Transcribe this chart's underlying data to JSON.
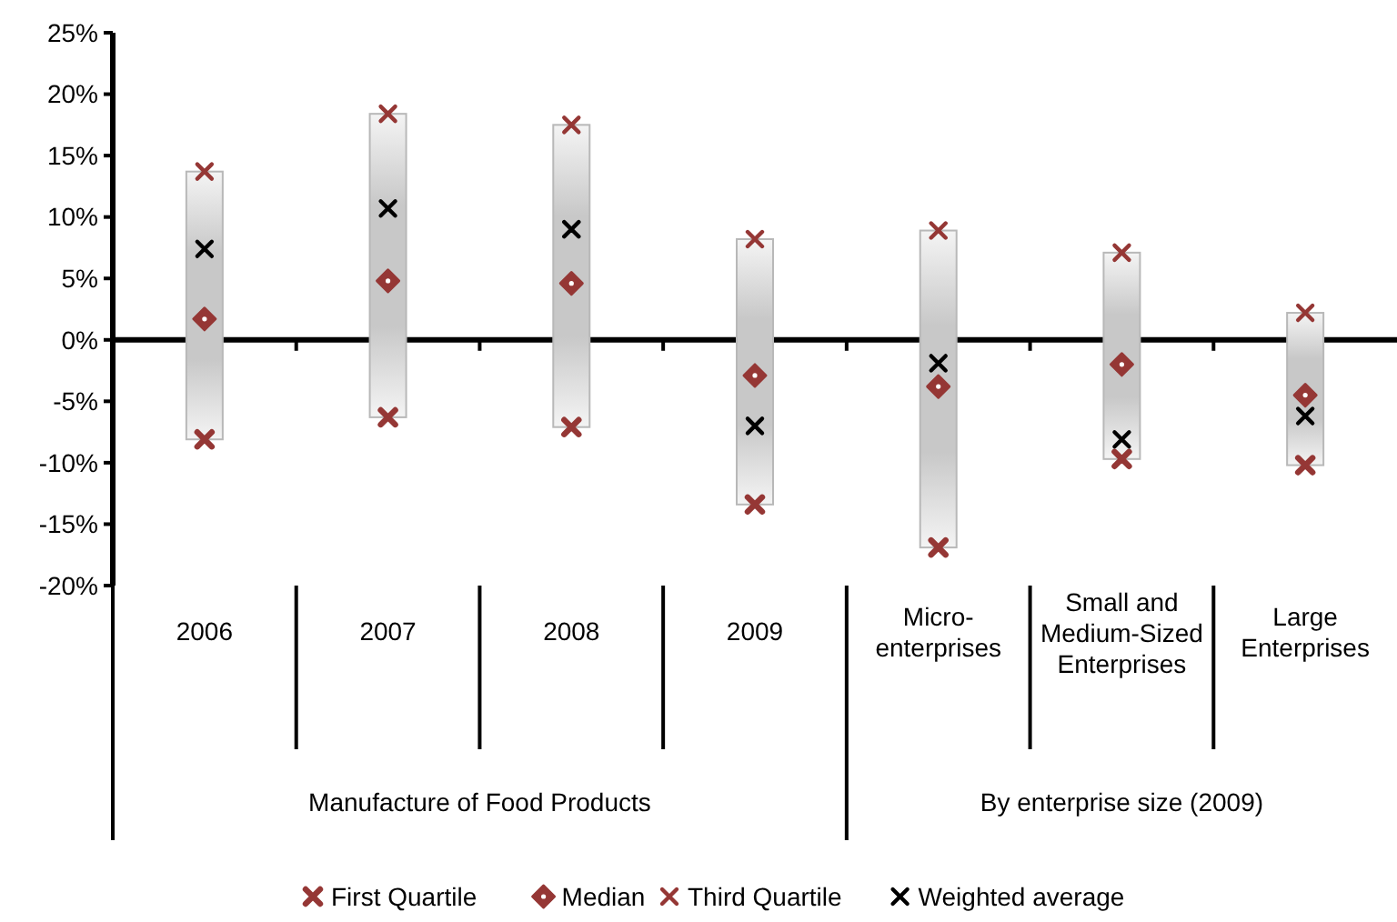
{
  "chart_data": {
    "type": "bar",
    "categories": [
      "2006",
      "2007",
      "2008",
      "2009",
      "Micro-enterprises",
      "Small and Medium-Sized Enterprises",
      "Large Enterprises"
    ],
    "ylim": [
      -20,
      25
    ],
    "yticks": [
      {
        "value": -20,
        "label": "-20%"
      },
      {
        "value": -15,
        "label": "-15%"
      },
      {
        "value": -10,
        "label": "-10%"
      },
      {
        "value": -5,
        "label": "-5%"
      },
      {
        "value": 0,
        "label": "0%"
      },
      {
        "value": 5,
        "label": "5%"
      },
      {
        "value": 10,
        "label": "10%"
      },
      {
        "value": 15,
        "label": "15%"
      },
      {
        "value": 20,
        "label": "20%"
      },
      {
        "value": 25,
        "label": "25%"
      }
    ],
    "legend": "bottom",
    "annotations": [
      "Manufacture of Food Products",
      "By enterprise size (2009)"
    ],
    "series": [
      {
        "color": "#c8c8c8",
        "base": [
          -8.1,
          -6.3,
          -7.1,
          -13.4,
          -16.9,
          -9.7,
          -10.2
        ],
        "values": [
          21.8,
          24.7,
          24.6,
          21.6,
          25.8,
          16.8,
          12.4
        ]
      },
      {
        "type": "scatter",
        "name": "First Quartile",
        "color": "#953735",
        "marker": "cross",
        "values": [
          -8.1,
          -6.3,
          -7.1,
          -13.4,
          -16.9,
          -9.7,
          -10.2
        ]
      },
      {
        "type": "scatter",
        "name": "Median",
        "color": "#953735",
        "marker": "diamond",
        "values": [
          1.7,
          4.8,
          4.6,
          -2.9,
          -3.8,
          -2.0,
          -4.5
        ]
      },
      {
        "type": "scatter",
        "name": "Third Quartile",
        "color": "#953735",
        "marker": "cross",
        "values": [
          13.7,
          18.4,
          17.5,
          8.2,
          8.9,
          7.1,
          2.2
        ]
      },
      {
        "type": "scatter",
        "name": "Weighted average",
        "color": "#000000",
        "marker": "cross",
        "values": [
          7.4,
          10.7,
          9.0,
          -7.0,
          -1.9,
          -8.1,
          -6.2
        ]
      }
    ]
  }
}
